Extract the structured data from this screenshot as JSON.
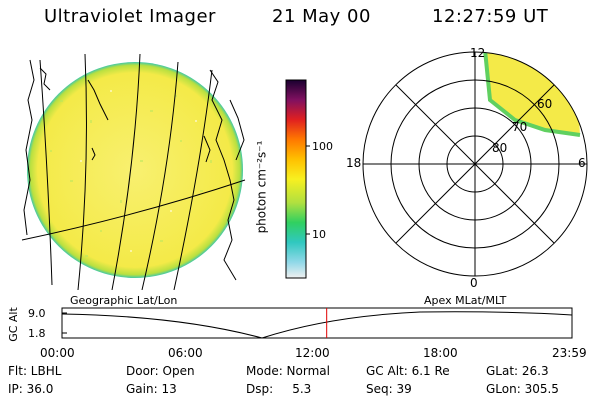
{
  "header": {
    "title": "Ultraviolet Imager",
    "date": "21 May 00",
    "time": "12:27:59 UT"
  },
  "colorbar": {
    "unit_label": "photon cm⁻²s⁻¹",
    "ticks": [
      "100",
      "10"
    ]
  },
  "polar": {
    "mlt_labels": [
      "12",
      "18",
      "6",
      "0"
    ],
    "mlat_labels": [
      "60",
      "70",
      "80"
    ]
  },
  "timeline": {
    "left_title": "Geographic Lat/Lon",
    "right_title": "Apex MLat/MLT",
    "axis_label": "GC Alt",
    "y_max": "9.0",
    "y_min": "1.8",
    "time_ticks": [
      "00:00",
      "06:00",
      "12:00",
      "18:00",
      "23:59"
    ],
    "current_time_fraction": 0.519
  },
  "status": {
    "row1": [
      {
        "text": "Flt: LBHL"
      },
      {
        "text": "Door: Open"
      },
      {
        "text": "Mode: Normal"
      },
      {
        "text": "GC Alt: 6.1 Re"
      },
      {
        "text": "GLat:  26.3"
      }
    ],
    "row2": [
      {
        "text": "IP: 36.0"
      },
      {
        "text": "Gain: 13"
      },
      {
        "text": "Dsp:     5.3"
      },
      {
        "text": "Seq: 39"
      },
      {
        "text": "GLon: 305.5"
      }
    ]
  },
  "colors": {
    "background": "#ffffff",
    "foreground": "#000000",
    "earth_fill": "#f6ec50",
    "limb_glow": "#3cc8a0",
    "time_marker": "#e00000"
  }
}
